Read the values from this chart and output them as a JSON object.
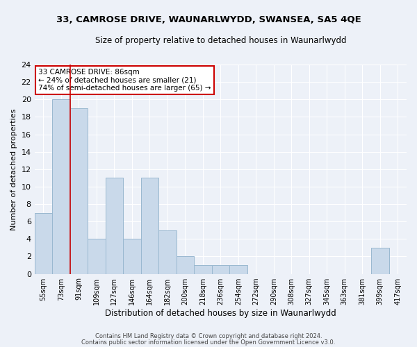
{
  "title": "33, CAMROSE DRIVE, WAUNARLWYDD, SWANSEA, SA5 4QE",
  "subtitle": "Size of property relative to detached houses in Waunarlwydd",
  "xlabel": "Distribution of detached houses by size in Waunarlwydd",
  "ylabel": "Number of detached properties",
  "categories": [
    "55sqm",
    "73sqm",
    "91sqm",
    "109sqm",
    "127sqm",
    "146sqm",
    "164sqm",
    "182sqm",
    "200sqm",
    "218sqm",
    "236sqm",
    "254sqm",
    "272sqm",
    "290sqm",
    "308sqm",
    "327sqm",
    "345sqm",
    "363sqm",
    "381sqm",
    "399sqm",
    "417sqm"
  ],
  "values": [
    7,
    20,
    19,
    4,
    11,
    4,
    11,
    5,
    2,
    1,
    1,
    1,
    0,
    0,
    0,
    0,
    0,
    0,
    0,
    3,
    0
  ],
  "bar_color": "#c9d9ea",
  "bar_edge_color": "#9ab8d0",
  "bg_color": "#edf1f8",
  "grid_color": "#ffffff",
  "red_line_x": 2.0,
  "annotation_text": "33 CAMROSE DRIVE: 86sqm\n← 24% of detached houses are smaller (21)\n74% of semi-detached houses are larger (65) →",
  "annotation_box_color": "#ffffff",
  "annotation_box_edge": "#cc0000",
  "footer1": "Contains HM Land Registry data © Crown copyright and database right 2024.",
  "footer2": "Contains public sector information licensed under the Open Government Licence v3.0.",
  "ylim": [
    0,
    24
  ],
  "yticks": [
    0,
    2,
    4,
    6,
    8,
    10,
    12,
    14,
    16,
    18,
    20,
    22,
    24
  ],
  "title_fontsize": 9.5,
  "subtitle_fontsize": 8.5,
  "ylabel_fontsize": 8,
  "xlabel_fontsize": 8.5,
  "tick_fontsize": 7,
  "annot_fontsize": 7.5,
  "footer_fontsize": 6.0
}
